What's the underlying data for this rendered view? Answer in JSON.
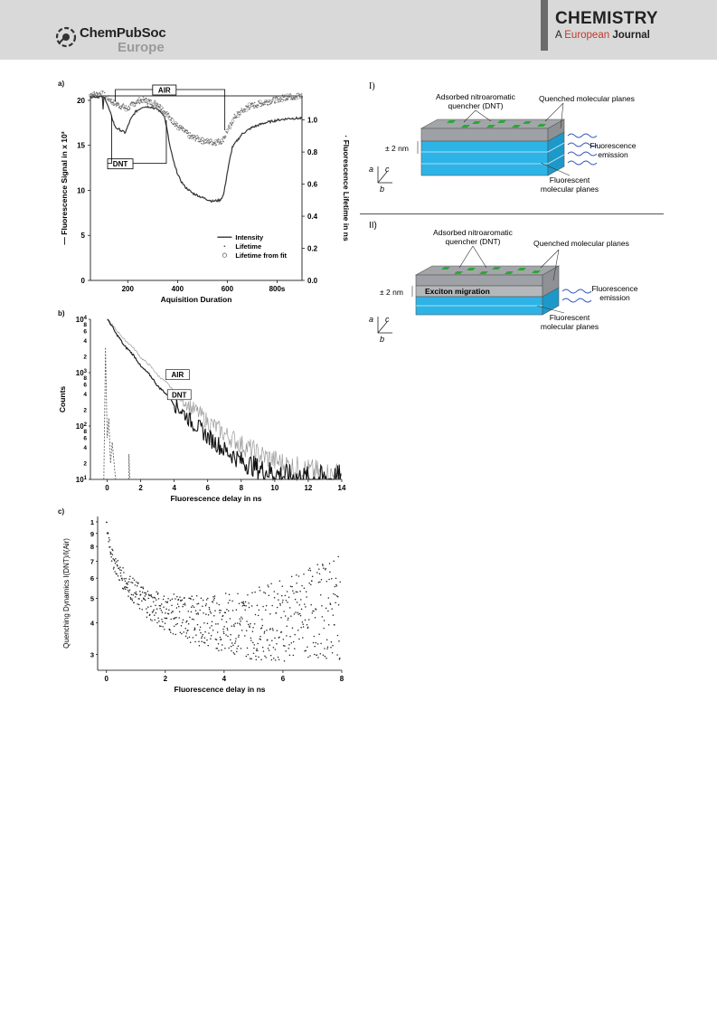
{
  "header": {
    "publisher_line1": "ChemPubSoc",
    "publisher_line2": "Europe",
    "journal_line1": "CHEMISTRY",
    "journal_line2_a": "A",
    "journal_line2_b": "European",
    "journal_line2_c": "Journal"
  },
  "colors": {
    "header_bg": "#d9d9d9",
    "crystal_blue": "#2eb3e6",
    "crystal_gray": "#9ea2a6",
    "quencher_green": "#2aa837"
  },
  "figure_left": {
    "panel_a": {
      "label": "a)"
    },
    "panel_b": {
      "label": "b)"
    },
    "panel_c": {
      "label": "c)"
    }
  },
  "chart_data": [
    {
      "type": "line",
      "title": "",
      "xlabel": "Aquisition Duration",
      "ylabel": "Fluorescence Signal in x 10³",
      "y2label": "Fluorescence Lifetime in ns",
      "xlim": [
        50,
        900
      ],
      "ylim": [
        0,
        20.5
      ],
      "y2lim": [
        0,
        1.15
      ],
      "xticks": [
        "200",
        "400",
        "600",
        "800s"
      ],
      "yticks": [
        "0",
        "5",
        "10",
        "15",
        "20"
      ],
      "y2ticks": [
        "0.0",
        "0.2",
        "0.4",
        "0.6",
        "0.8",
        "1.0"
      ],
      "legend": [
        "Intensity",
        "Lifetime",
        "Lifetime from fit"
      ],
      "legend_position": "bottom-right",
      "annotations": [
        "AIR",
        "DNT"
      ],
      "series": [
        {
          "name": "Intensity",
          "x": [
            50,
            90,
            100,
            110,
            150,
            190,
            210,
            230,
            260,
            290,
            320,
            345,
            355,
            370,
            390,
            410,
            430,
            460,
            500,
            540,
            570,
            585,
            600,
            620,
            660,
            700,
            750,
            800,
            850,
            900
          ],
          "values": [
            20.4,
            20.4,
            20.4,
            20.2,
            17.0,
            16.4,
            17.8,
            18.7,
            19.3,
            19.3,
            19.0,
            18.4,
            17.2,
            14.8,
            12.6,
            11.2,
            10.4,
            9.7,
            9.2,
            8.8,
            8.9,
            9.5,
            12.0,
            14.8,
            16.3,
            17.0,
            17.5,
            17.8,
            18.0,
            18.0
          ]
        },
        {
          "name": "Lifetime",
          "x": [
            50,
            100,
            150,
            200,
            230,
            260,
            290,
            320,
            345,
            370,
            400,
            450,
            500,
            550,
            580,
            600,
            630,
            680,
            730,
            780,
            830,
            880,
            900
          ],
          "values": [
            1.16,
            1.16,
            1.1,
            1.07,
            1.11,
            1.13,
            1.11,
            1.1,
            1.06,
            1.01,
            0.96,
            0.9,
            0.87,
            0.86,
            0.87,
            0.93,
            1.02,
            1.08,
            1.1,
            1.12,
            1.14,
            1.15,
            1.15
          ]
        }
      ]
    },
    {
      "type": "line",
      "title": "",
      "xlabel": "Fluorescence delay in ns",
      "ylabel": "Counts",
      "xlim": [
        -1,
        14
      ],
      "ylim": [
        10,
        10000
      ],
      "yscale": "log",
      "xticks": [
        "0",
        "2",
        "4",
        "6",
        "8",
        "10",
        "12",
        "14"
      ],
      "annotations": [
        "AIR",
        "DNT"
      ],
      "series": [
        {
          "name": "AIR",
          "x": [
            0,
            0.5,
            1,
            2,
            3,
            4,
            5,
            6,
            7,
            8,
            9,
            10,
            11,
            12,
            13,
            14
          ],
          "values": [
            10000,
            6500,
            4200,
            1900,
            900,
            430,
            220,
            120,
            70,
            45,
            30,
            22,
            17,
            14,
            12,
            11
          ]
        },
        {
          "name": "DNT",
          "x": [
            0,
            0.5,
            1,
            2,
            3,
            4,
            5,
            6,
            7,
            8,
            9,
            10,
            11,
            12,
            13,
            14
          ],
          "values": [
            10000,
            5500,
            3200,
            1300,
            560,
            250,
            120,
            62,
            35,
            22,
            16,
            13,
            11,
            10,
            10,
            10
          ]
        }
      ]
    },
    {
      "type": "scatter",
      "title": "",
      "xlabel": "Fluorescence delay in ns",
      "ylabel": "Quenching Dynamics I(DNT)/I(Air)",
      "xlim": [
        -0.3,
        8
      ],
      "ylim": [
        2.6,
        10.5
      ],
      "yscale": "log",
      "xticks": [
        "0",
        "2",
        "4",
        "6",
        "8"
      ],
      "yticks": [
        "3",
        "4",
        "5",
        "6",
        "7",
        "8",
        "9",
        "1"
      ],
      "series": [
        {
          "name": "",
          "x": [
            0,
            0.2,
            0.5,
            1,
            1.5,
            2,
            3,
            4,
            5,
            6,
            7,
            8
          ],
          "values": [
            9.6,
            7.2,
            6.1,
            5.2,
            4.7,
            4.4,
            4.1,
            4.0,
            3.95,
            4.1,
            4.4,
            4.6
          ]
        }
      ]
    }
  ],
  "figure_right": {
    "panel_I": {
      "label": "I)",
      "quencher_label_1": "Adsorbed nitroaromatic",
      "quencher_label_2": "quencher (DNT)",
      "quenched_label": "Quenched molecular planes",
      "thickness": "± 2 nm",
      "emission_1": "Fluorescence",
      "emission_2": "emission",
      "fluor_1": "Fluorescent",
      "fluor_2": "molecular planes",
      "axis_a": "a",
      "axis_b": "b",
      "axis_c": "c"
    },
    "panel_II": {
      "label": "II)",
      "quencher_label_1": "Adsorbed nitroaromatic",
      "quencher_label_2": "quencher (DNT)",
      "quenched_label": "Quenched molecular planes",
      "thickness": "± 2 nm",
      "exciton": "Exciton migration",
      "emission_1": "Fluorescence",
      "emission_2": "emission",
      "fluor_1": "Fluorescent",
      "fluor_2": "molecular planes",
      "axis_a": "a",
      "axis_b": "b",
      "axis_c": "c"
    }
  }
}
